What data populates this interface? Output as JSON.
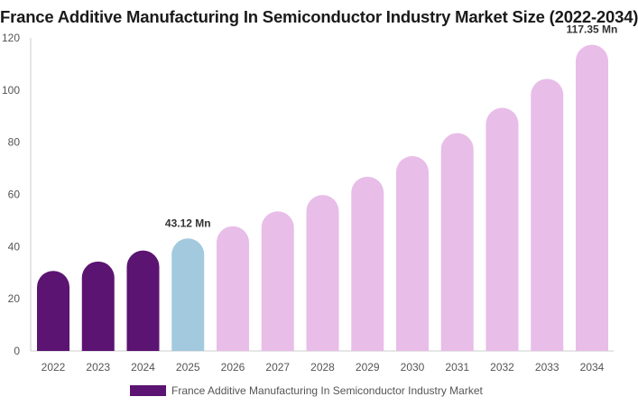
{
  "title": "France Additive Manufacturing In Semiconductor Industry Market Size (2022-2034)",
  "colors": {
    "historical": "#5b1472",
    "base_year": "#a3c9df",
    "forecast": "#e8bde8",
    "axis": "#cccccc"
  },
  "legend": {
    "label": "France Additive Manufacturing In Semiconductor Industry Market"
  },
  "chart_data": {
    "type": "bar",
    "title": "France Additive Manufacturing In Semiconductor Industry Market Size (2022-2034)",
    "categories": [
      "2022",
      "2023",
      "2024",
      "2025",
      "2026",
      "2027",
      "2028",
      "2029",
      "2030",
      "2031",
      "2032",
      "2033",
      "2034"
    ],
    "series": [
      {
        "name": "France Additive Manufacturing In Semiconductor Industry Market",
        "values": [
          30.7,
          34.3,
          38.5,
          43.12,
          47.8,
          53.5,
          59.8,
          66.8,
          74.7,
          83.5,
          93.2,
          104.3,
          117.35
        ]
      }
    ],
    "bar_kinds": [
      "historical",
      "historical",
      "historical",
      "base_year",
      "forecast",
      "forecast",
      "forecast",
      "forecast",
      "forecast",
      "forecast",
      "forecast",
      "forecast",
      "forecast"
    ],
    "data_labels": [
      {
        "index": 3,
        "text": "43.12 Mn"
      },
      {
        "index": 12,
        "text": "117.35 Mn"
      }
    ],
    "ylim": [
      0,
      120
    ],
    "yticks": [
      0,
      20,
      40,
      60,
      80,
      100,
      120
    ],
    "xlabel": "",
    "ylabel": "",
    "grid": false,
    "legend_position": "bottom"
  }
}
